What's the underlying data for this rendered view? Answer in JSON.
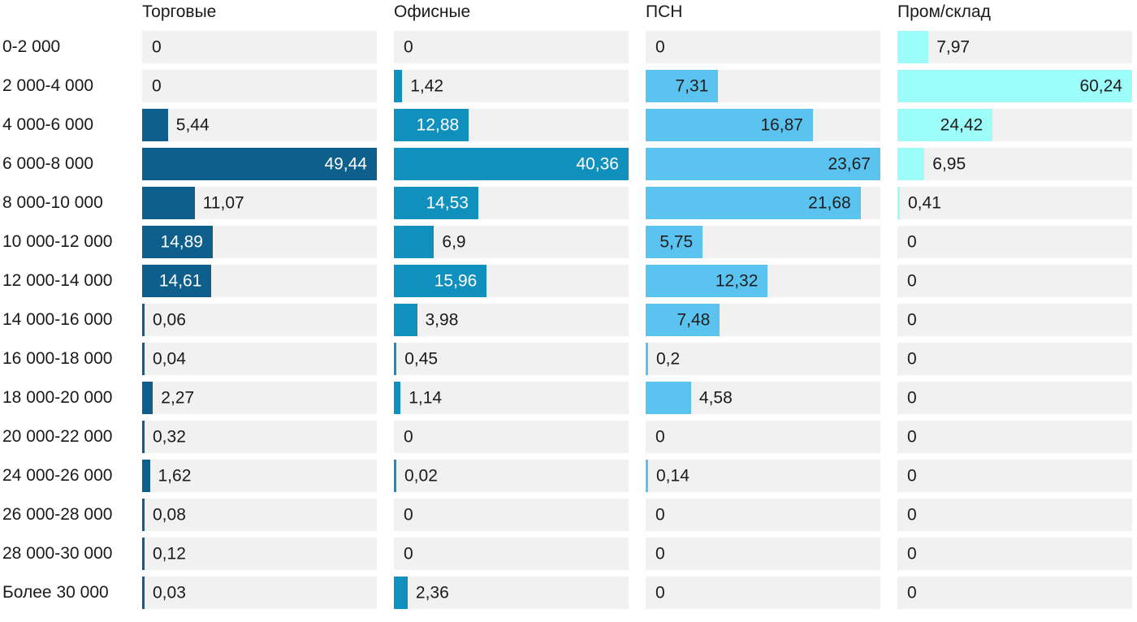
{
  "chart_data": {
    "type": "bar",
    "orientation": "horizontal",
    "layout": "table-of-bars, one column per series, bars scaled to each column's own maximum, value label inside bar when it fits otherwise right of bar",
    "grid": false,
    "legend_position": "column-headers-top",
    "categories": [
      "0-2 000",
      "2 000-4 000",
      "4 000-6 000",
      "6 000-8 000",
      "8 000-10 000",
      "10 000-12 000",
      "12 000-14 000",
      "14 000-16 000",
      "16 000-18 000",
      "18 000-20 000",
      "20 000-22 000",
      "24 000-26 000",
      "26 000-28 000",
      "28 000-30 000",
      "Более 30 000"
    ],
    "series": [
      {
        "name": "Торговые",
        "color": "#0e5f8c",
        "inside_text_color": "#ffffff",
        "values": [
          0,
          0,
          5.44,
          49.44,
          11.07,
          14.89,
          14.61,
          0.06,
          0.04,
          2.27,
          0.32,
          1.62,
          0.08,
          0.12,
          0.03
        ],
        "labels": [
          "0",
          "0",
          "5,44",
          "49,44",
          "11,07",
          "14,89",
          "14,61",
          "0,06",
          "0,04",
          "2,27",
          "0,32",
          "1,62",
          "0,08",
          "0,12",
          "0,03"
        ]
      },
      {
        "name": "Офисные",
        "color": "#1090bd",
        "inside_text_color": "#ffffff",
        "values": [
          0,
          1.42,
          12.88,
          40.36,
          14.53,
          6.9,
          15.96,
          3.98,
          0.45,
          1.14,
          0,
          0.02,
          0,
          0,
          2.36
        ],
        "labels": [
          "0",
          "1,42",
          "12,88",
          "40,36",
          "14,53",
          "6,9",
          "15,96",
          "3,98",
          "0,45",
          "1,14",
          "0",
          "0,02",
          "0",
          "0",
          "2,36"
        ]
      },
      {
        "name": "ПСН",
        "color": "#5bc3f0",
        "inside_text_color": "#1f1f1f",
        "values": [
          0,
          7.31,
          16.87,
          23.67,
          21.68,
          5.75,
          12.32,
          7.48,
          0.2,
          4.58,
          0,
          0.14,
          0,
          0,
          0
        ],
        "labels": [
          "0",
          "7,31",
          "16,87",
          "23,67",
          "21,68",
          "5,75",
          "12,32",
          "7,48",
          "0,2",
          "4,58",
          "0",
          "0,14",
          "0",
          "0",
          "0"
        ]
      },
      {
        "name": "Пром/склад",
        "color": "#9dfdf8",
        "inside_text_color": "#1f1f1f",
        "values": [
          7.97,
          60.24,
          24.42,
          6.95,
          0.41,
          0,
          0,
          0,
          0,
          0,
          0,
          0,
          0,
          0,
          0
        ],
        "labels": [
          "7,97",
          "60,24",
          "24,42",
          "6,95",
          "0,41",
          "0",
          "0",
          "0",
          "0",
          "0",
          "0",
          "0",
          "0",
          "0",
          "0"
        ]
      }
    ],
    "style": {
      "cell_background": "#f1f1f1",
      "text_color": "#1a1a1a",
      "page_background": "#ffffff"
    }
  }
}
